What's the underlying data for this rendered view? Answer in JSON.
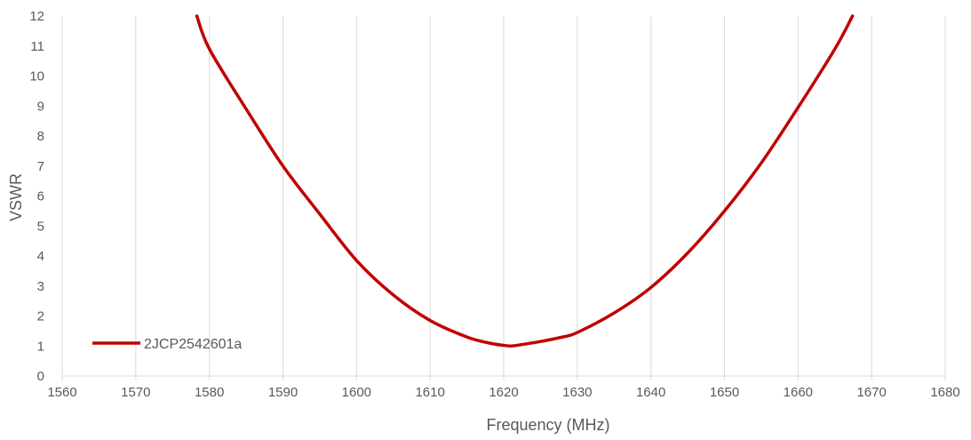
{
  "chart_data": {
    "type": "line",
    "title": "",
    "xlabel": "Frequency (MHz)",
    "ylabel": "VSWR",
    "xlim": [
      1560,
      1680
    ],
    "ylim": [
      0,
      12
    ],
    "xticks": [
      1560,
      1570,
      1580,
      1590,
      1600,
      1610,
      1620,
      1630,
      1640,
      1650,
      1660,
      1670,
      1680
    ],
    "xtick_labels": [
      "1560",
      "1570",
      "1580",
      "1590",
      "1600",
      "1610",
      "1620",
      "1630",
      "1640",
      "1650",
      "1660",
      "1670",
      "1680"
    ],
    "yticks": [
      0,
      1,
      2,
      3,
      4,
      5,
      6,
      7,
      8,
      9,
      10,
      11,
      12
    ],
    "ytick_labels": [
      "0",
      "1",
      "2",
      "3",
      "4",
      "5",
      "6",
      "7",
      "8",
      "9",
      "10",
      "11",
      "12"
    ],
    "grid": "vertical",
    "legend_position": "bottom-left",
    "series": [
      {
        "name": "2JCP2542601a",
        "color": "#c00000",
        "x": [
          1578.3,
          1580,
          1585,
          1590,
          1595,
          1600,
          1605,
          1610,
          1615,
          1618,
          1620,
          1621,
          1622,
          1625,
          1628,
          1630,
          1635,
          1640,
          1645,
          1650,
          1655,
          1660,
          1665,
          1667.4
        ],
        "y": [
          12,
          10.9,
          8.9,
          7.0,
          5.4,
          3.85,
          2.7,
          1.85,
          1.3,
          1.1,
          1.02,
          1.0,
          1.03,
          1.15,
          1.3,
          1.45,
          2.1,
          2.95,
          4.1,
          5.5,
          7.1,
          8.95,
          10.9,
          12
        ]
      }
    ]
  }
}
